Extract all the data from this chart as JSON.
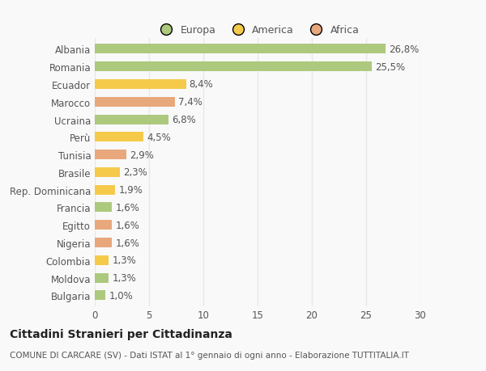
{
  "categories": [
    "Albania",
    "Romania",
    "Ecuador",
    "Marocco",
    "Ucraina",
    "Perù",
    "Tunisia",
    "Brasile",
    "Rep. Dominicana",
    "Francia",
    "Egitto",
    "Nigeria",
    "Colombia",
    "Moldova",
    "Bulgaria"
  ],
  "values": [
    26.8,
    25.5,
    8.4,
    7.4,
    6.8,
    4.5,
    2.9,
    2.3,
    1.9,
    1.6,
    1.6,
    1.6,
    1.3,
    1.3,
    1.0
  ],
  "labels": [
    "26,8%",
    "25,5%",
    "8,4%",
    "7,4%",
    "6,8%",
    "4,5%",
    "2,9%",
    "2,3%",
    "1,9%",
    "1,6%",
    "1,6%",
    "1,6%",
    "1,3%",
    "1,3%",
    "1,0%"
  ],
  "continent": [
    "Europa",
    "Europa",
    "America",
    "Africa",
    "Europa",
    "America",
    "Africa",
    "America",
    "America",
    "Europa",
    "Africa",
    "Africa",
    "America",
    "Europa",
    "Europa"
  ],
  "colors": {
    "Europa": "#adc97e",
    "America": "#f5ca4b",
    "Africa": "#e8a87c"
  },
  "title": "Cittadini Stranieri per Cittadinanza",
  "subtitle": "COMUNE DI CARCARE (SV) - Dati ISTAT al 1° gennaio di ogni anno - Elaborazione TUTTITALIA.IT",
  "xlim": [
    0,
    30
  ],
  "xticks": [
    0,
    5,
    10,
    15,
    20,
    25,
    30
  ],
  "background_color": "#f9f9f9",
  "grid_color": "#e8e8e8",
  "bar_height": 0.55,
  "title_fontsize": 10,
  "subtitle_fontsize": 7.5,
  "tick_fontsize": 8.5,
  "label_fontsize": 8.5
}
